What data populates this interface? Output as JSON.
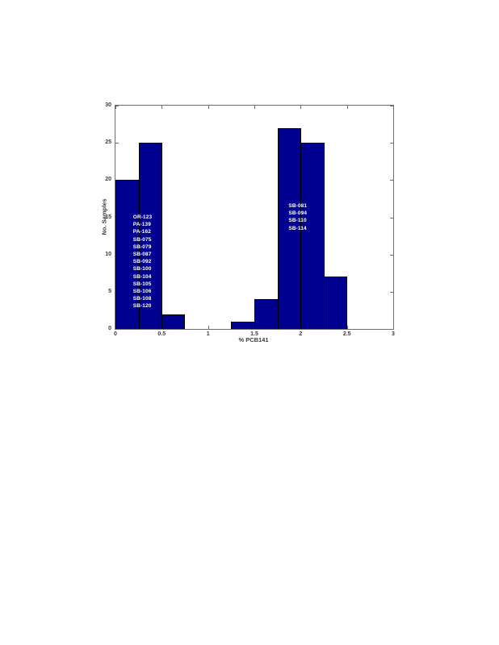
{
  "page": {
    "background": "#ffffff"
  },
  "chart_data": {
    "type": "bar",
    "subtype": "histogram",
    "title": "",
    "xlabel": "% PCB141",
    "ylabel": "No. Samples",
    "xlim": [
      0,
      3
    ],
    "ylim": [
      0,
      30
    ],
    "grid": false,
    "legend": null,
    "xticks": [
      {
        "value": 0,
        "label": "0"
      },
      {
        "value": 0.5,
        "label": "0.5"
      },
      {
        "value": 1,
        "label": "1"
      },
      {
        "value": 1.5,
        "label": "1.5"
      },
      {
        "value": 2,
        "label": "2"
      },
      {
        "value": 2.5,
        "label": "2.5"
      },
      {
        "value": 3,
        "label": "3"
      }
    ],
    "yticks": [
      {
        "value": 0,
        "label": "0"
      },
      {
        "value": 5,
        "label": "5"
      },
      {
        "value": 10,
        "label": "10"
      },
      {
        "value": 15,
        "label": "15"
      },
      {
        "value": 20,
        "label": "20"
      },
      {
        "value": 25,
        "label": "25"
      },
      {
        "value": 30,
        "label": "30"
      }
    ],
    "bins": [
      {
        "x0": 0.0,
        "x1": 0.25,
        "count": 20
      },
      {
        "x0": 0.25,
        "x1": 0.5,
        "count": 25
      },
      {
        "x0": 0.5,
        "x1": 0.75,
        "count": 2
      },
      {
        "x0": 1.25,
        "x1": 1.5,
        "count": 1
      },
      {
        "x0": 1.5,
        "x1": 1.75,
        "count": 4
      },
      {
        "x0": 1.75,
        "x1": 2.0,
        "count": 27
      },
      {
        "x0": 2.0,
        "x1": 2.25,
        "count": 25
      },
      {
        "x0": 2.25,
        "x1": 2.5,
        "count": 7
      }
    ],
    "bar_color": "#000090",
    "bar_edge_color": "#000000",
    "axis_color": "#6e6e6e",
    "tick_label_color": "#3a3a3a",
    "annotations": [
      {
        "name": "left-cluster-sample-ids",
        "x": 0.19,
        "y": 15.5,
        "color": "#ffffff",
        "lines": [
          "OR-123",
          "PA-139",
          "PA-162",
          "SB-075",
          "SB-079",
          "SB-087",
          "SB-092",
          "SB-100",
          "SB-104",
          "SB-105",
          "SB-106",
          "SB-108",
          "SB-120"
        ]
      },
      {
        "name": "right-cluster-sample-ids",
        "x": 1.87,
        "y": 17.0,
        "color": "#ffffff",
        "lines": [
          "SB-081",
          "SB-094",
          "SB-110",
          "SB-114"
        ]
      }
    ]
  }
}
